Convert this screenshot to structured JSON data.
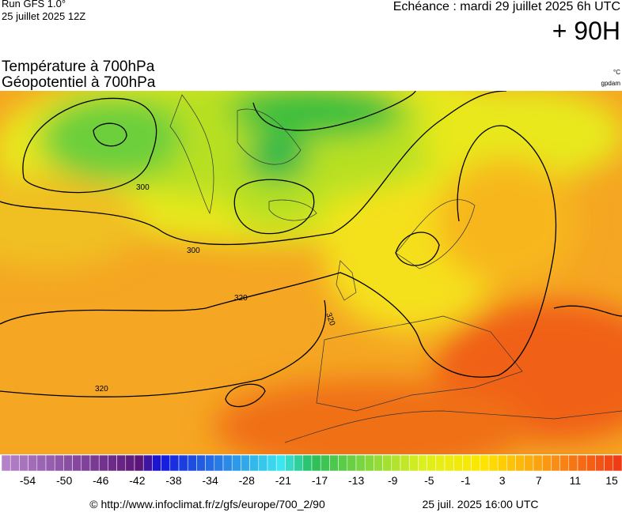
{
  "header": {
    "run": "Run GFS 1.0°",
    "run_date": "25 juillet 2025 12Z",
    "echeance": "Echéance : mardi 29 juillet 2025 6h UTC",
    "lead": "+ 90H"
  },
  "titles": {
    "line1": "Température à 700hPa",
    "line2": "Géopotentiel à 700hPa",
    "unit1": "°C",
    "unit2": "gpdam"
  },
  "contour_labels": [
    "300",
    "300",
    "320",
    "320",
    "320"
  ],
  "colorbar": {
    "ticks": [
      "-54",
      "-50",
      "-46",
      "-42",
      "-38",
      "-34",
      "-28",
      "-21",
      "-17",
      "-13",
      "-9",
      "-5",
      "-1",
      "3",
      "7",
      "11",
      "15"
    ]
  },
  "footer": {
    "url": "© http://www.infoclimat.fr/z/gfs/europe/700_2/90",
    "date": "25 juil. 2025 16:00 UTC"
  }
}
